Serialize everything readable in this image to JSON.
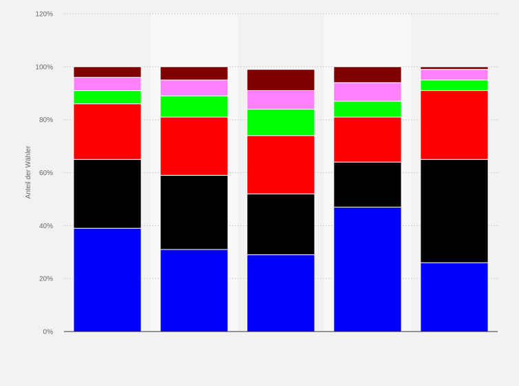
{
  "chart_data": {
    "type": "bar",
    "stacked": true,
    "ylabel": "Anteil der Wähler",
    "ylim": [
      0,
      120
    ],
    "yticks": [
      0,
      20,
      40,
      60,
      80,
      100,
      120
    ],
    "ytick_labels": [
      "0%",
      "20%",
      "40%",
      "60%",
      "80%",
      "100%",
      "120%"
    ],
    "grid": true,
    "legend": "none",
    "categories": [
      "",
      "",
      "",
      "",
      ""
    ],
    "series": [
      {
        "color": "#0000ff",
        "values": [
          39,
          31,
          29,
          47,
          26
        ]
      },
      {
        "color": "#000000",
        "values": [
          26,
          28,
          23,
          17,
          39
        ]
      },
      {
        "color": "#ff0000",
        "values": [
          21,
          22,
          22,
          17,
          26
        ]
      },
      {
        "color": "#00ff00",
        "values": [
          5,
          8,
          10,
          6,
          4
        ]
      },
      {
        "color": "#ff80ff",
        "values": [
          5,
          6,
          7,
          7,
          4
        ]
      },
      {
        "color": "#800000",
        "values": [
          4,
          5,
          8,
          6,
          1
        ]
      }
    ],
    "colors": {
      "background": "#f2f2f2",
      "band": "#f8f8f8",
      "grid": "#cccccc",
      "axis": "#333333",
      "text": "#666666"
    }
  }
}
